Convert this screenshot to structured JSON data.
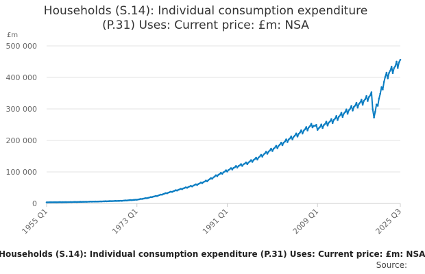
{
  "page": {
    "title_line1": "Households (S.14): Individual consumption expenditure",
    "title_line2": "(P.31) Uses: Current price: £m: NSA",
    "footer_title": "Households (S.14): Individual consumption expenditure (P.31) Uses: Current price: £m: NSA",
    "source_label": "Source:"
  },
  "colors": {
    "series": "#0b7dc2",
    "grid": "#e3e3e3",
    "axis": "#cccccc"
  },
  "chart_data": {
    "type": "line",
    "title": "Households (S.14): Individual consumption expenditure (P.31) Uses: Current price: £m: NSA",
    "xlabel": "",
    "ylabel": "£m",
    "x_range": [
      1955,
      2025.5
    ],
    "ylim": [
      0,
      500000
    ],
    "y_ticks": [
      {
        "value": 0,
        "label": "0"
      },
      {
        "value": 100000,
        "label": "100 000"
      },
      {
        "value": 200000,
        "label": "200 000"
      },
      {
        "value": 300000,
        "label": "300 000"
      },
      {
        "value": 400000,
        "label": "400 000"
      },
      {
        "value": 500000,
        "label": "500 000"
      }
    ],
    "x_ticks": [
      {
        "value": 1955,
        "label": "1955 Q1"
      },
      {
        "value": 1973,
        "label": "1973 Q1"
      },
      {
        "value": 1991,
        "label": "1991 Q1"
      },
      {
        "value": 2009,
        "label": "2009 Q1"
      },
      {
        "value": 2025.5,
        "label": "2025 Q3"
      }
    ],
    "grid": true,
    "seasonal_amplitude": 0.03,
    "series": [
      {
        "name": "Households (S.14): Individual consumption expenditure (P.31) Uses: Current price: £m: NSA",
        "anchors": [
          [
            1955,
            3500
          ],
          [
            1960,
            4500
          ],
          [
            1965,
            6000
          ],
          [
            1970,
            8500
          ],
          [
            1973,
            12000
          ],
          [
            1975,
            17000
          ],
          [
            1977,
            24000
          ],
          [
            1979,
            33000
          ],
          [
            1981,
            42000
          ],
          [
            1983,
            51000
          ],
          [
            1985,
            60000
          ],
          [
            1987,
            72000
          ],
          [
            1989,
            89000
          ],
          [
            1991,
            104000
          ],
          [
            1993,
            117000
          ],
          [
            1995,
            128000
          ],
          [
            1997,
            143000
          ],
          [
            1999,
            162000
          ],
          [
            2001,
            180000
          ],
          [
            2003,
            200000
          ],
          [
            2005,
            218000
          ],
          [
            2007,
            238000
          ],
          [
            2008,
            248000
          ],
          [
            2009.25,
            238000
          ],
          [
            2010,
            246000
          ],
          [
            2012,
            262000
          ],
          [
            2014,
            282000
          ],
          [
            2016,
            303000
          ],
          [
            2018,
            322000
          ],
          [
            2019.75,
            343000
          ],
          [
            2020.25,
            272000
          ],
          [
            2020.75,
            305000
          ],
          [
            2021.5,
            345000
          ],
          [
            2022.5,
            398000
          ],
          [
            2023.5,
            418000
          ],
          [
            2024.5,
            432000
          ],
          [
            2025.5,
            452000
          ]
        ]
      }
    ]
  }
}
